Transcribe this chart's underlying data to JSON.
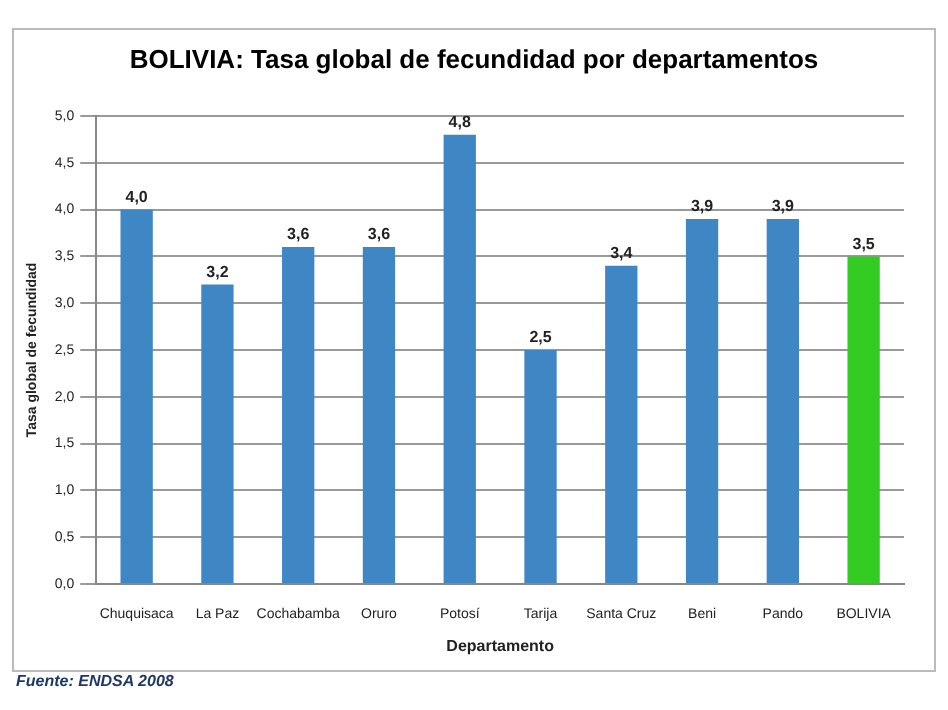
{
  "chart_data": {
    "type": "bar",
    "title": "BOLIVIA: Tasa global de fecundidad por departamentos",
    "xlabel": "Departamento",
    "ylabel": "Tasa global de fecundidad",
    "categories": [
      "Chuquisaca",
      "La Paz",
      "Cochabamba",
      "Oruro",
      "Potosí",
      "Tarija",
      "Santa Cruz",
      "Beni",
      "Pando",
      "BOLIVIA"
    ],
    "values": [
      4.0,
      3.2,
      3.6,
      3.6,
      4.8,
      2.5,
      3.4,
      3.9,
      3.9,
      3.5
    ],
    "value_labels": [
      "4,0",
      "3,2",
      "3,6",
      "3,6",
      "4,8",
      "2,5",
      "3,4",
      "3,9",
      "3,9",
      "3,5"
    ],
    "colors": [
      "#3f86c4",
      "#3f86c4",
      "#3f86c4",
      "#3f86c4",
      "#3f86c4",
      "#3f86c4",
      "#3f86c4",
      "#3f86c4",
      "#3f86c4",
      "#33cc22"
    ],
    "ylim": [
      0,
      5
    ],
    "yticks": [
      {
        "value": 0,
        "label": "0,0"
      },
      {
        "value": 0.5,
        "label": "0,5"
      },
      {
        "value": 1,
        "label": "1,0"
      },
      {
        "value": 1.5,
        "label": "1,5"
      },
      {
        "value": 2,
        "label": "2,0"
      },
      {
        "value": 2.5,
        "label": "2,5"
      },
      {
        "value": 3,
        "label": "3,0"
      },
      {
        "value": 3.5,
        "label": "3,5"
      },
      {
        "value": 4,
        "label": "4,0"
      },
      {
        "value": 4.5,
        "label": "4,5"
      },
      {
        "value": 5,
        "label": "5,0"
      }
    ],
    "grid": "y",
    "legend": false,
    "annotations": [
      "Fuente: ENDSA 2008"
    ]
  }
}
